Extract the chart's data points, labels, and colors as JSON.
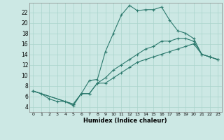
{
  "xlabel": "Humidex (Indice chaleur)",
  "bg_color": "#cce8e4",
  "line_color": "#2d7a6e",
  "grid_color": "#aad4cc",
  "xlim": [
    -0.5,
    23.5
  ],
  "ylim": [
    3.0,
    23.8
  ],
  "xticks": [
    0,
    1,
    2,
    3,
    4,
    5,
    6,
    7,
    8,
    9,
    10,
    11,
    12,
    13,
    14,
    15,
    16,
    17,
    18,
    19,
    20,
    21,
    22,
    23
  ],
  "yticks": [
    4,
    6,
    8,
    10,
    12,
    14,
    16,
    18,
    20,
    22
  ],
  "line1_x": [
    0,
    1,
    2,
    3,
    4,
    5,
    6,
    7,
    8,
    9,
    10,
    11,
    12,
    13,
    14,
    15,
    16,
    17,
    18,
    19,
    20,
    21,
    22,
    23
  ],
  "line1_y": [
    7,
    6.5,
    5.5,
    5.0,
    5.0,
    4.2,
    6.5,
    9.0,
    9.2,
    14.5,
    18.0,
    21.5,
    23.3,
    22.3,
    22.5,
    22.5,
    23.0,
    20.5,
    18.5,
    18.0,
    17.0,
    14.0,
    13.5,
    13.0
  ],
  "line2_x": [
    0,
    5,
    6,
    7,
    8,
    9,
    10,
    11,
    12,
    13,
    14,
    15,
    16,
    17,
    18,
    19,
    20,
    21,
    22,
    23
  ],
  "line2_y": [
    7,
    4.5,
    6.5,
    6.5,
    8.5,
    9.5,
    11.0,
    12.0,
    13.0,
    14.0,
    15.0,
    15.5,
    16.5,
    16.5,
    17.0,
    17.0,
    16.5,
    14.0,
    13.5,
    13.0
  ],
  "line3_x": [
    0,
    5,
    6,
    7,
    8,
    9,
    10,
    11,
    12,
    13,
    14,
    15,
    16,
    17,
    18,
    19,
    20,
    21,
    22,
    23
  ],
  "line3_y": [
    7,
    4.5,
    6.5,
    6.5,
    8.5,
    8.5,
    9.5,
    10.5,
    11.5,
    12.5,
    13.0,
    13.5,
    14.0,
    14.5,
    15.0,
    15.5,
    16.0,
    14.0,
    13.5,
    13.0
  ]
}
